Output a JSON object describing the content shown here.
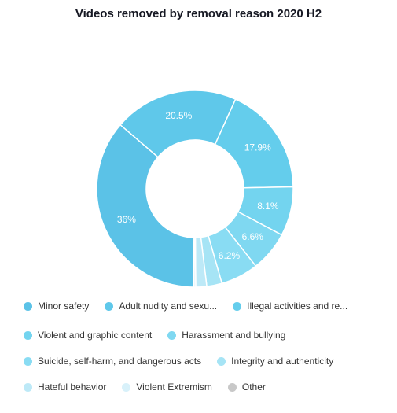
{
  "chart_data": {
    "type": "pie",
    "donut": true,
    "title": "Videos removed by removal reason 2020 H2",
    "categories": [
      "Minor safety",
      "Adult nudity and sexu...",
      "Illegal activities and re...",
      "Violent and graphic content",
      "Harassment and bullying",
      "Suicide, self-harm, and dangerous acts",
      "Integrity and authenticity",
      "Hateful behavior",
      "Violent Extremism",
      "Other"
    ],
    "values": [
      36,
      20.5,
      17.9,
      8.1,
      6.6,
      6.2,
      2.5,
      1.8,
      0.3,
      0.1
    ],
    "data_labels": [
      "36%",
      "20.5%",
      "17.9%",
      "8.1%",
      "6.6%",
      "6.2%",
      "",
      "",
      "",
      ""
    ],
    "colors": [
      "#5bc2e7",
      "#5fc8ea",
      "#64cdec",
      "#73d4ef",
      "#7fd8f1",
      "#89dcf3",
      "#a6e4f5",
      "#bde9f7",
      "#d8f1fa",
      "#c8c8c8"
    ],
    "legend_position": "bottom"
  }
}
